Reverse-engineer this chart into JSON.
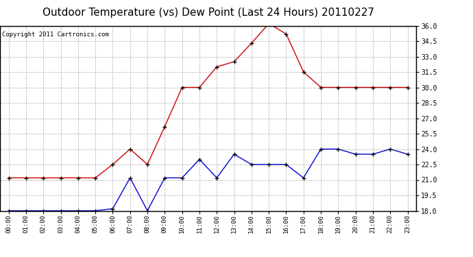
{
  "title": "Outdoor Temperature (vs) Dew Point (Last 24 Hours) 20110227",
  "copyright": "Copyright 2011 Cartronics.com",
  "hours": [
    "00:00",
    "01:00",
    "02:00",
    "03:00",
    "04:00",
    "05:00",
    "06:00",
    "07:00",
    "08:00",
    "09:00",
    "10:00",
    "11:00",
    "12:00",
    "13:00",
    "14:00",
    "15:00",
    "16:00",
    "17:00",
    "18:00",
    "19:00",
    "20:00",
    "21:00",
    "22:00",
    "23:00"
  ],
  "temp_red": [
    21.2,
    21.2,
    21.2,
    21.2,
    21.2,
    21.2,
    22.5,
    24.0,
    22.5,
    26.2,
    30.0,
    30.0,
    32.0,
    32.5,
    34.3,
    36.2,
    35.2,
    31.5,
    30.0,
    30.0,
    30.0,
    30.0,
    30.0,
    30.0
  ],
  "dew_blue": [
    18.0,
    18.0,
    18.0,
    18.0,
    18.0,
    18.0,
    18.2,
    21.2,
    18.0,
    21.2,
    21.2,
    23.0,
    21.2,
    23.5,
    22.5,
    22.5,
    22.5,
    21.2,
    24.0,
    24.0,
    23.5,
    23.5,
    24.0,
    23.5
  ],
  "ylim": [
    18.0,
    36.0
  ],
  "yticks": [
    18.0,
    19.5,
    21.0,
    22.5,
    24.0,
    25.5,
    27.0,
    28.5,
    30.0,
    31.5,
    33.0,
    34.5,
    36.0
  ],
  "red_color": "#cc0000",
  "blue_color": "#0000cc",
  "bg_color": "#ffffff",
  "grid_color": "#aaaaaa",
  "title_fontsize": 11,
  "copyright_fontsize": 6.5
}
